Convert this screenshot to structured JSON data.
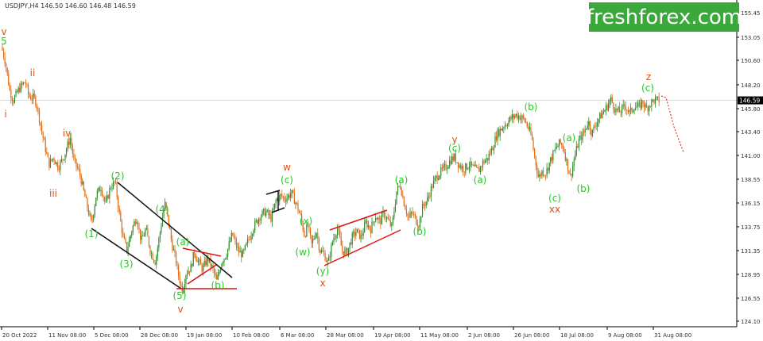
{
  "header": {
    "symbol_line": "USDJPY,H4 146.50 146.60 146.48 146.59"
  },
  "logo": {
    "text": "freshforex.com",
    "bg": "#3aa83a"
  },
  "colors": {
    "bull": "#2e8b2e",
    "bear": "#e06a10",
    "wave_green": "#22cc22",
    "wave_orange": "#e05010",
    "channel_black": "#111111",
    "channel_red": "#e21111",
    "forecast": "#e21111",
    "price_tag_bg": "#000000"
  },
  "chart_data": {
    "type": "candlestick",
    "symbol": "USDJPY",
    "timeframe": "H4",
    "ohlc_last": {
      "open": 146.5,
      "high": 146.6,
      "low": 146.48,
      "close": 146.59
    },
    "current_price": "146.59",
    "ylim": [
      123.0,
      157.0
    ],
    "yticks": [
      "155.45",
      "153.05",
      "150.60",
      "148.20",
      "145.80",
      "143.40",
      "141.00",
      "138.55",
      "136.15",
      "133.75",
      "131.35",
      "128.95",
      "126.55",
      "124.10"
    ],
    "xticks": [
      "20 Oct 2022",
      "11 Nov 08:00",
      "5 Dec 08:00",
      "28 Dec 08:00",
      "19 Jan 08:00",
      "10 Feb 08:00",
      "6 Mar 08:00",
      "28 Mar 08:00",
      "19 Apr 08:00",
      "11 May 08:00",
      "2 Jun 08:00",
      "26 Jun 08:00",
      "18 Jul 08:00",
      "9 Aug 08:00",
      "31 Aug 08:00"
    ],
    "price_path": [
      [
        0,
        152.0
      ],
      [
        0.3,
        150.6
      ],
      [
        0.7,
        147.5
      ],
      [
        1.0,
        146.6
      ],
      [
        1.5,
        147.8
      ],
      [
        2.0,
        148.5
      ],
      [
        2.3,
        147.0
      ],
      [
        2.8,
        146.8
      ],
      [
        3.0,
        146.0
      ],
      [
        3.5,
        142.8
      ],
      [
        4.0,
        140.1
      ],
      [
        4.4,
        140.8
      ],
      [
        4.8,
        139.8
      ],
      [
        5.3,
        141.0
      ],
      [
        5.8,
        142.8
      ],
      [
        6.1,
        140.5
      ],
      [
        6.6,
        139.2
      ],
      [
        7.0,
        137.0
      ],
      [
        7.3,
        135.5
      ],
      [
        7.6,
        134.0
      ],
      [
        8.0,
        137.0
      ],
      [
        8.4,
        137.8
      ],
      [
        8.8,
        136.0
      ],
      [
        9.2,
        137.8
      ],
      [
        9.6,
        138.3
      ],
      [
        10.0,
        134.7
      ],
      [
        10.3,
        132.5
      ],
      [
        10.6,
        131.4
      ],
      [
        11.0,
        133.4
      ],
      [
        11.4,
        134.8
      ],
      [
        11.8,
        132.3
      ],
      [
        12.2,
        133.5
      ],
      [
        12.6,
        131.2
      ],
      [
        13.0,
        130.2
      ],
      [
        13.5,
        134.0
      ],
      [
        13.8,
        136.1
      ],
      [
        14.1,
        134.3
      ],
      [
        14.4,
        132.0
      ],
      [
        14.7,
        130.5
      ],
      [
        15.0,
        128.6
      ],
      [
        15.3,
        127.3
      ],
      [
        15.6,
        129.1
      ],
      [
        16.0,
        129.6
      ],
      [
        16.3,
        131.2
      ],
      [
        16.6,
        130.3
      ],
      [
        17.0,
        129.4
      ],
      [
        17.4,
        130.6
      ],
      [
        17.8,
        129.6
      ],
      [
        18.2,
        128.2
      ],
      [
        18.6,
        130.2
      ],
      [
        19.0,
        131.0
      ],
      [
        19.5,
        133.0
      ],
      [
        20.0,
        131.3
      ],
      [
        20.4,
        130.9
      ],
      [
        20.8,
        132.2
      ],
      [
        21.3,
        133.7
      ],
      [
        21.8,
        134.8
      ],
      [
        22.3,
        135.3
      ],
      [
        22.8,
        134.6
      ],
      [
        23.2,
        136.4
      ],
      [
        23.6,
        136.9
      ],
      [
        24.0,
        136.6
      ],
      [
        24.5,
        137.2
      ],
      [
        24.9,
        136.1
      ],
      [
        25.3,
        134.7
      ],
      [
        25.6,
        132.9
      ],
      [
        25.9,
        133.9
      ],
      [
        26.2,
        131.9
      ],
      [
        26.6,
        133.4
      ],
      [
        26.9,
        131.4
      ],
      [
        27.3,
        130.9
      ],
      [
        27.6,
        130.0
      ],
      [
        28.0,
        132.4
      ],
      [
        28.4,
        133.6
      ],
      [
        28.8,
        131.3
      ],
      [
        29.2,
        131.1
      ],
      [
        29.6,
        132.6
      ],
      [
        30.0,
        133.3
      ],
      [
        30.4,
        132.7
      ],
      [
        30.8,
        134.2
      ],
      [
        31.2,
        133.5
      ],
      [
        31.6,
        134.9
      ],
      [
        32.0,
        134.2
      ],
      [
        32.3,
        135.2
      ],
      [
        32.6,
        134.5
      ],
      [
        33.0,
        133.7
      ],
      [
        33.4,
        137.4
      ],
      [
        33.7,
        138.0
      ],
      [
        34.0,
        136.3
      ],
      [
        34.4,
        134.6
      ],
      [
        34.7,
        135.2
      ],
      [
        35.0,
        134.5
      ],
      [
        35.3,
        134.0
      ],
      [
        35.6,
        135.8
      ],
      [
        36.0,
        136.5
      ],
      [
        36.4,
        137.9
      ],
      [
        36.8,
        138.9
      ],
      [
        37.2,
        139.4
      ],
      [
        37.6,
        139.9
      ],
      [
        38.0,
        140.6
      ],
      [
        38.3,
        140.8
      ],
      [
        38.7,
        140.0
      ],
      [
        39.1,
        139.6
      ],
      [
        39.5,
        140.1
      ],
      [
        39.9,
        139.7
      ],
      [
        40.3,
        139.4
      ],
      [
        40.7,
        140.3
      ],
      [
        41.1,
        140.7
      ],
      [
        41.5,
        141.8
      ],
      [
        41.9,
        143.2
      ],
      [
        42.3,
        143.8
      ],
      [
        42.7,
        144.3
      ],
      [
        43.1,
        144.8
      ],
      [
        43.5,
        145.1
      ],
      [
        43.9,
        144.9
      ],
      [
        44.2,
        144.6
      ],
      [
        44.5,
        143.9
      ],
      [
        44.8,
        142.9
      ],
      [
        45.1,
        140.6
      ],
      [
        45.4,
        138.7
      ],
      [
        45.7,
        139.4
      ],
      [
        46.0,
        139.2
      ],
      [
        46.4,
        140.5
      ],
      [
        46.8,
        141.6
      ],
      [
        47.2,
        142.3
      ],
      [
        47.5,
        141.8
      ],
      [
        47.8,
        140.2
      ],
      [
        48.1,
        138.8
      ],
      [
        48.4,
        140.6
      ],
      [
        48.8,
        142.5
      ],
      [
        49.2,
        143.2
      ],
      [
        49.6,
        144.5
      ],
      [
        49.9,
        143.2
      ],
      [
        50.3,
        144.4
      ],
      [
        50.7,
        145.1
      ],
      [
        51.1,
        145.8
      ],
      [
        51.5,
        146.7
      ],
      [
        51.9,
        145.6
      ],
      [
        52.3,
        145.4
      ],
      [
        52.7,
        146.1
      ],
      [
        53.1,
        145.3
      ],
      [
        53.5,
        146.0
      ],
      [
        53.9,
        145.9
      ],
      [
        54.2,
        146.5
      ],
      [
        54.5,
        145.7
      ],
      [
        54.8,
        146.2
      ],
      [
        55.1,
        146.59
      ]
    ],
    "annotations": [
      {
        "text": "v",
        "color": "orange"
      },
      {
        "text": "5",
        "color": "green"
      },
      {
        "text": "i",
        "color": "orange"
      },
      {
        "text": "ii",
        "color": "orange"
      },
      {
        "text": "iii",
        "color": "orange"
      },
      {
        "text": "iv",
        "color": "orange"
      },
      {
        "text": "v",
        "color": "orange"
      },
      {
        "text": "(1)",
        "color": "green"
      },
      {
        "text": "(2)",
        "color": "green"
      },
      {
        "text": "(3)",
        "color": "green"
      },
      {
        "text": "(4)",
        "color": "green"
      },
      {
        "text": "(5)",
        "color": "green"
      },
      {
        "text": "(a)",
        "color": "green"
      },
      {
        "text": "(b)",
        "color": "green"
      },
      {
        "text": "w",
        "color": "orange"
      },
      {
        "text": "(c)",
        "color": "green"
      },
      {
        "text": "(x)",
        "color": "green"
      },
      {
        "text": "(w)",
        "color": "green"
      },
      {
        "text": "(y)",
        "color": "green"
      },
      {
        "text": "x",
        "color": "orange"
      },
      {
        "text": "(a)",
        "color": "green"
      },
      {
        "text": "(b)",
        "color": "green"
      },
      {
        "text": "y",
        "color": "orange"
      },
      {
        "text": "(c)",
        "color": "green"
      },
      {
        "text": "(a)",
        "color": "green"
      },
      {
        "text": "(b)",
        "color": "green"
      },
      {
        "text": "(c)",
        "color": "green"
      },
      {
        "text": "xx",
        "color": "orange"
      },
      {
        "text": "(a)",
        "color": "green"
      },
      {
        "text": "(b)",
        "color": "green"
      },
      {
        "text": "z",
        "color": "orange"
      },
      {
        "text": "(c)",
        "color": "green"
      }
    ]
  }
}
